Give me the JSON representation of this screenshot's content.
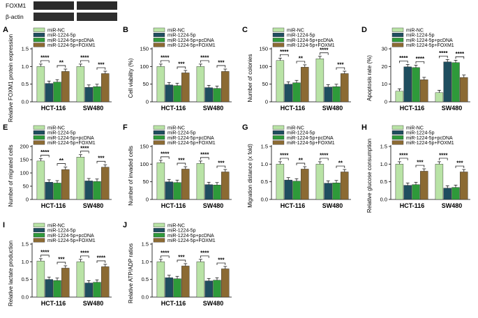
{
  "western_blot": {
    "labels": [
      "FOXM1",
      "β-actin"
    ]
  },
  "legend_labels": [
    "miR-NC",
    "miR-1224-5p",
    "miR-1224-5p+pcDNA",
    "miR-1224-5p+FOXM1"
  ],
  "colors": [
    "#b9e3a6",
    "#1f4e5f",
    "#2e9a3a",
    "#8b6a33"
  ],
  "chart_data": [
    {
      "panel": "A",
      "type": "bar",
      "ylabel": "Relative FOXM1 protein expression",
      "ylim": [
        0,
        1.5
      ],
      "yticks": [
        0.0,
        0.5,
        1.0,
        1.5
      ],
      "categories": [
        "HCT-116",
        "SW480"
      ],
      "series": [
        {
          "name": "miR-NC",
          "values": [
            1.0,
            1.0
          ]
        },
        {
          "name": "miR-1224-5p",
          "values": [
            0.52,
            0.41
          ]
        },
        {
          "name": "miR-1224-5p+pcDNA",
          "values": [
            0.56,
            0.43
          ]
        },
        {
          "name": "miR-1224-5p+FOXM1",
          "values": [
            0.86,
            0.8
          ]
        }
      ],
      "significance": [
        {
          "cat": 0,
          "between": [
            0,
            1
          ],
          "text": "****"
        },
        {
          "cat": 0,
          "between": [
            2,
            3
          ],
          "text": "**"
        },
        {
          "cat": 1,
          "between": [
            0,
            1
          ],
          "text": "****"
        },
        {
          "cat": 1,
          "between": [
            2,
            3
          ],
          "text": "***"
        }
      ]
    },
    {
      "panel": "B",
      "type": "bar",
      "ylabel": "Cell viability (%)",
      "ylim": [
        0,
        150
      ],
      "yticks": [
        0,
        50,
        100,
        150
      ],
      "categories": [
        "HCT-116",
        "SW480"
      ],
      "series": [
        {
          "name": "miR-NC",
          "values": [
            100,
            100
          ]
        },
        {
          "name": "miR-1224-5p",
          "values": [
            48,
            40
          ]
        },
        {
          "name": "miR-1224-5p+pcDNA",
          "values": [
            46,
            38
          ]
        },
        {
          "name": "miR-1224-5p+FOXM1",
          "values": [
            82,
            86
          ]
        }
      ],
      "significance": [
        {
          "cat": 0,
          "between": [
            0,
            1
          ],
          "text": "****"
        },
        {
          "cat": 0,
          "between": [
            2,
            3
          ],
          "text": "***"
        },
        {
          "cat": 1,
          "between": [
            0,
            1
          ],
          "text": "****"
        },
        {
          "cat": 1,
          "between": [
            2,
            3
          ],
          "text": "***"
        }
      ]
    },
    {
      "panel": "C",
      "type": "bar",
      "ylabel": "Number of colonies",
      "ylim": [
        0,
        150
      ],
      "yticks": [
        0,
        50,
        100,
        150
      ],
      "categories": [
        "HCT-116",
        "SW480"
      ],
      "series": [
        {
          "name": "miR-NC",
          "values": [
            117,
            122
          ]
        },
        {
          "name": "miR-1224-5p",
          "values": [
            50,
            42
          ]
        },
        {
          "name": "miR-1224-5p+pcDNA",
          "values": [
            54,
            43
          ]
        },
        {
          "name": "miR-1224-5p+FOXM1",
          "values": [
            98,
            80
          ]
        }
      ],
      "significance": [
        {
          "cat": 0,
          "between": [
            0,
            1
          ],
          "text": "****"
        },
        {
          "cat": 0,
          "between": [
            2,
            3
          ],
          "text": "**"
        },
        {
          "cat": 1,
          "between": [
            0,
            1
          ],
          "text": "****"
        },
        {
          "cat": 1,
          "between": [
            2,
            3
          ],
          "text": "***"
        }
      ]
    },
    {
      "panel": "D",
      "type": "bar",
      "ylabel": "Apoptosis rate (%)",
      "ylim": [
        0,
        30
      ],
      "yticks": [
        0,
        10,
        20,
        30
      ],
      "categories": [
        "HCT-116",
        "SW480"
      ],
      "series": [
        {
          "name": "miR-NC",
          "values": [
            6,
            5.2
          ]
        },
        {
          "name": "miR-1224-5p",
          "values": [
            19.8,
            22.6
          ]
        },
        {
          "name": "miR-1224-5p+pcDNA",
          "values": [
            19.4,
            22.2
          ]
        },
        {
          "name": "miR-1224-5p+FOXM1",
          "values": [
            12.5,
            13.8
          ]
        }
      ],
      "significance": [
        {
          "cat": 0,
          "between": [
            0,
            1
          ],
          "text": "****"
        },
        {
          "cat": 0,
          "between": [
            2,
            3
          ],
          "text": "****"
        },
        {
          "cat": 1,
          "between": [
            0,
            1
          ],
          "text": "****"
        },
        {
          "cat": 1,
          "between": [
            2,
            3
          ],
          "text": "****"
        }
      ]
    },
    {
      "panel": "E",
      "type": "bar",
      "ylabel": "Number of migrated cells",
      "ylim": [
        0,
        200
      ],
      "yticks": [
        0,
        50,
        100,
        150,
        200
      ],
      "categories": [
        "HCT-116",
        "SW480"
      ],
      "series": [
        {
          "name": "miR-NC",
          "values": [
            145,
            160
          ]
        },
        {
          "name": "miR-1224-5p",
          "values": [
            65,
            70
          ]
        },
        {
          "name": "miR-1224-5p+pcDNA",
          "values": [
            62,
            68
          ]
        },
        {
          "name": "miR-1224-5p+FOXM1",
          "values": [
            113,
            122
          ]
        }
      ],
      "significance": [
        {
          "cat": 0,
          "between": [
            0,
            1
          ],
          "text": "****"
        },
        {
          "cat": 0,
          "between": [
            2,
            3
          ],
          "text": "**"
        },
        {
          "cat": 1,
          "between": [
            0,
            1
          ],
          "text": "****"
        },
        {
          "cat": 1,
          "between": [
            2,
            3
          ],
          "text": "***"
        }
      ]
    },
    {
      "panel": "F",
      "type": "bar",
      "ylabel": "Number of invaded cells",
      "ylim": [
        0,
        150
      ],
      "yticks": [
        0,
        50,
        100,
        150
      ],
      "categories": [
        "HCT-116",
        "SW480"
      ],
      "series": [
        {
          "name": "miR-NC",
          "values": [
            104,
            102
          ]
        },
        {
          "name": "miR-1224-5p",
          "values": [
            50,
            42
          ]
        },
        {
          "name": "miR-1224-5p+pcDNA",
          "values": [
            48,
            41
          ]
        },
        {
          "name": "miR-1224-5p+FOXM1",
          "values": [
            86,
            78
          ]
        }
      ],
      "significance": [
        {
          "cat": 0,
          "between": [
            0,
            1
          ],
          "text": "****"
        },
        {
          "cat": 0,
          "between": [
            2,
            3
          ],
          "text": "***"
        },
        {
          "cat": 1,
          "between": [
            0,
            1
          ],
          "text": "****"
        },
        {
          "cat": 1,
          "between": [
            2,
            3
          ],
          "text": "***"
        }
      ]
    },
    {
      "panel": "G",
      "type": "bar",
      "ylabel": "Migration distance (x fold)",
      "ylim": [
        0,
        1.5
      ],
      "yticks": [
        0.0,
        0.5,
        1.0,
        1.5
      ],
      "categories": [
        "HCT-116",
        "SW480"
      ],
      "series": [
        {
          "name": "miR-NC",
          "values": [
            1.0,
            1.0
          ]
        },
        {
          "name": "miR-1224-5p",
          "values": [
            0.55,
            0.46
          ]
        },
        {
          "name": "miR-1224-5p+pcDNA",
          "values": [
            0.52,
            0.47
          ]
        },
        {
          "name": "miR-1224-5p+FOXM1",
          "values": [
            0.86,
            0.78
          ]
        }
      ],
      "significance": [
        {
          "cat": 0,
          "between": [
            0,
            1
          ],
          "text": "****"
        },
        {
          "cat": 0,
          "between": [
            2,
            3
          ],
          "text": "**"
        },
        {
          "cat": 1,
          "between": [
            0,
            1
          ],
          "text": "****"
        },
        {
          "cat": 1,
          "between": [
            2,
            3
          ],
          "text": "**"
        }
      ]
    },
    {
      "panel": "H",
      "type": "bar",
      "ylabel": "Relative glucose consumption",
      "ylim": [
        0,
        1.5
      ],
      "yticks": [
        0.0,
        0.5,
        1.0,
        1.5
      ],
      "categories": [
        "HCT-116",
        "SW480"
      ],
      "series": [
        {
          "name": "miR-NC",
          "values": [
            1.0,
            1.0
          ]
        },
        {
          "name": "miR-1224-5p",
          "values": [
            0.4,
            0.32
          ]
        },
        {
          "name": "miR-1224-5p+pcDNA",
          "values": [
            0.42,
            0.34
          ]
        },
        {
          "name": "miR-1224-5p+FOXM1",
          "values": [
            0.8,
            0.78
          ]
        }
      ],
      "significance": [
        {
          "cat": 0,
          "between": [
            0,
            1
          ],
          "text": "****"
        },
        {
          "cat": 0,
          "between": [
            2,
            3
          ],
          "text": "***"
        },
        {
          "cat": 1,
          "between": [
            0,
            1
          ],
          "text": "****"
        },
        {
          "cat": 1,
          "between": [
            2,
            3
          ],
          "text": "***"
        }
      ]
    },
    {
      "panel": "I",
      "type": "bar",
      "ylabel": "Relative lactate production",
      "ylim": [
        0,
        1.5
      ],
      "yticks": [
        0.0,
        0.5,
        1.0,
        1.5
      ],
      "categories": [
        "HCT-116",
        "SW480"
      ],
      "series": [
        {
          "name": "miR-NC",
          "values": [
            1.02,
            1.0
          ]
        },
        {
          "name": "miR-1224-5p",
          "values": [
            0.5,
            0.4
          ]
        },
        {
          "name": "miR-1224-5p+pcDNA",
          "values": [
            0.47,
            0.42
          ]
        },
        {
          "name": "miR-1224-5p+FOXM1",
          "values": [
            0.82,
            0.86
          ]
        }
      ],
      "significance": [
        {
          "cat": 0,
          "between": [
            0,
            1
          ],
          "text": "****"
        },
        {
          "cat": 0,
          "between": [
            2,
            3
          ],
          "text": "***"
        },
        {
          "cat": 1,
          "between": [
            0,
            1
          ],
          "text": "****"
        },
        {
          "cat": 1,
          "between": [
            2,
            3
          ],
          "text": "****"
        }
      ]
    },
    {
      "panel": "J",
      "type": "bar",
      "ylabel": "Relative ATP/ADP ratios",
      "ylim": [
        0,
        1.5
      ],
      "yticks": [
        0.0,
        0.5,
        1.0,
        1.5
      ],
      "categories": [
        "HCT-116",
        "SW480"
      ],
      "series": [
        {
          "name": "miR-NC",
          "values": [
            1.0,
            1.0
          ]
        },
        {
          "name": "miR-1224-5p",
          "values": [
            0.55,
            0.46
          ]
        },
        {
          "name": "miR-1224-5p+pcDNA",
          "values": [
            0.52,
            0.48
          ]
        },
        {
          "name": "miR-1224-5p+FOXM1",
          "values": [
            0.88,
            0.8
          ]
        }
      ],
      "significance": [
        {
          "cat": 0,
          "between": [
            0,
            1
          ],
          "text": "****"
        },
        {
          "cat": 0,
          "between": [
            2,
            3
          ],
          "text": "***"
        },
        {
          "cat": 1,
          "between": [
            0,
            1
          ],
          "text": "****"
        },
        {
          "cat": 1,
          "between": [
            2,
            3
          ],
          "text": "***"
        }
      ]
    }
  ]
}
